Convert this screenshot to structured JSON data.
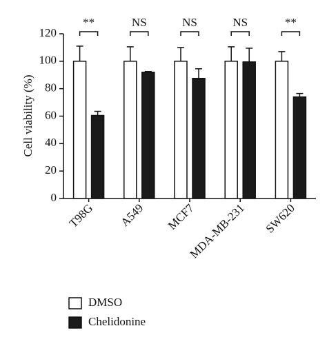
{
  "chart_data": {
    "type": "bar",
    "y_label": "Cell viability (%)",
    "categories": [
      "T98G",
      "A549",
      "MCF7",
      "MDA-MB-231",
      "SW620"
    ],
    "series": [
      {
        "name": "DMSO",
        "color": "#ffffff",
        "values": [
          100,
          100,
          100,
          100,
          100
        ],
        "errors": [
          11,
          10.5,
          10,
          10.5,
          7
        ]
      },
      {
        "name": "Chelidonine",
        "color": "#1a1a1a",
        "values": [
          60.5,
          92,
          87.5,
          99.5,
          74
        ],
        "errors": [
          3,
          0.5,
          7,
          10,
          2.5
        ]
      }
    ],
    "annotations": [
      "**",
      "NS",
      "NS",
      "NS",
      "**"
    ],
    "ylim": [
      0,
      120
    ],
    "yticks": [
      0,
      20,
      40,
      60,
      80,
      100,
      120
    ],
    "grid": false,
    "legend": "bottom-left"
  }
}
